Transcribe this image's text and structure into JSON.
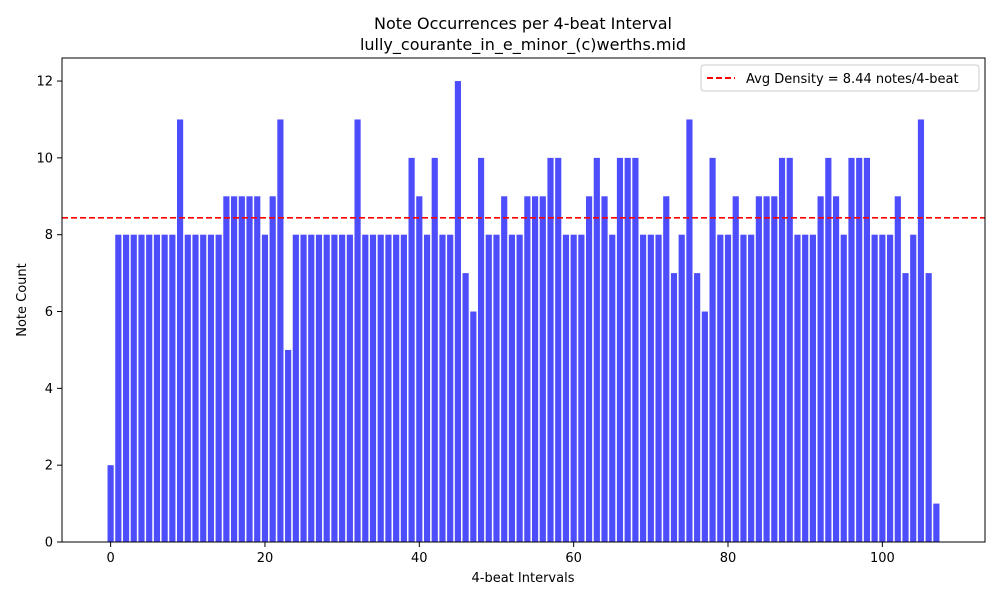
{
  "chart_data": {
    "type": "bar",
    "title": "Note Occurrences per 4-beat Interval",
    "subtitle": "lully_courante_in_e_minor_(c)werths.mid",
    "xlabel": "4-beat Intervals",
    "ylabel": "Note Count",
    "x": [
      0,
      1,
      2,
      3,
      4,
      5,
      6,
      7,
      8,
      9,
      10,
      11,
      12,
      13,
      14,
      15,
      16,
      17,
      18,
      19,
      20,
      21,
      22,
      23,
      24,
      25,
      26,
      27,
      28,
      29,
      30,
      31,
      32,
      33,
      34,
      35,
      36,
      37,
      38,
      39,
      40,
      41,
      42,
      43,
      44,
      45,
      46,
      47,
      48,
      49,
      50,
      51,
      52,
      53,
      54,
      55,
      56,
      57,
      58,
      59,
      60,
      61,
      62,
      63,
      64,
      65,
      66,
      67,
      68,
      69,
      70,
      71,
      72,
      73,
      74,
      75,
      76,
      77,
      78,
      79,
      80,
      81,
      82,
      83,
      84,
      85,
      86,
      87,
      88,
      89,
      90,
      91,
      92,
      93,
      94,
      95,
      96,
      97,
      98,
      99,
      100,
      101,
      102,
      103,
      104,
      105,
      106,
      107
    ],
    "values": [
      2,
      8,
      8,
      8,
      8,
      8,
      8,
      8,
      8,
      11,
      8,
      8,
      8,
      8,
      8,
      9,
      9,
      9,
      9,
      9,
      8,
      9,
      11,
      5,
      8,
      8,
      8,
      8,
      8,
      8,
      8,
      8,
      11,
      8,
      8,
      8,
      8,
      8,
      8,
      10,
      9,
      8,
      10,
      8,
      8,
      12,
      7,
      6,
      10,
      8,
      8,
      9,
      8,
      8,
      9,
      9,
      9,
      10,
      10,
      8,
      8,
      8,
      9,
      10,
      9,
      8,
      10,
      10,
      10,
      8,
      8,
      8,
      9,
      7,
      8,
      11,
      7,
      6,
      10,
      8,
      8,
      9,
      8,
      8,
      9,
      9,
      9,
      10,
      10,
      8,
      8,
      8,
      9,
      10,
      9,
      8,
      10,
      10,
      10,
      8,
      8,
      8,
      9,
      7,
      8,
      11,
      7,
      1
    ],
    "xlim": [
      -6.3,
      113.3
    ],
    "ylim": [
      0,
      12.6
    ],
    "xticks": [
      0,
      20,
      40,
      60,
      80,
      100
    ],
    "yticks": [
      0,
      2,
      4,
      6,
      8,
      10,
      12
    ],
    "bar_color": "#4d4dfb",
    "average": 8.44,
    "average_color": "#ff0000",
    "legend": {
      "label": "Avg Density = 8.44 notes/4-beat",
      "position": "upper right"
    },
    "grid": false
  }
}
